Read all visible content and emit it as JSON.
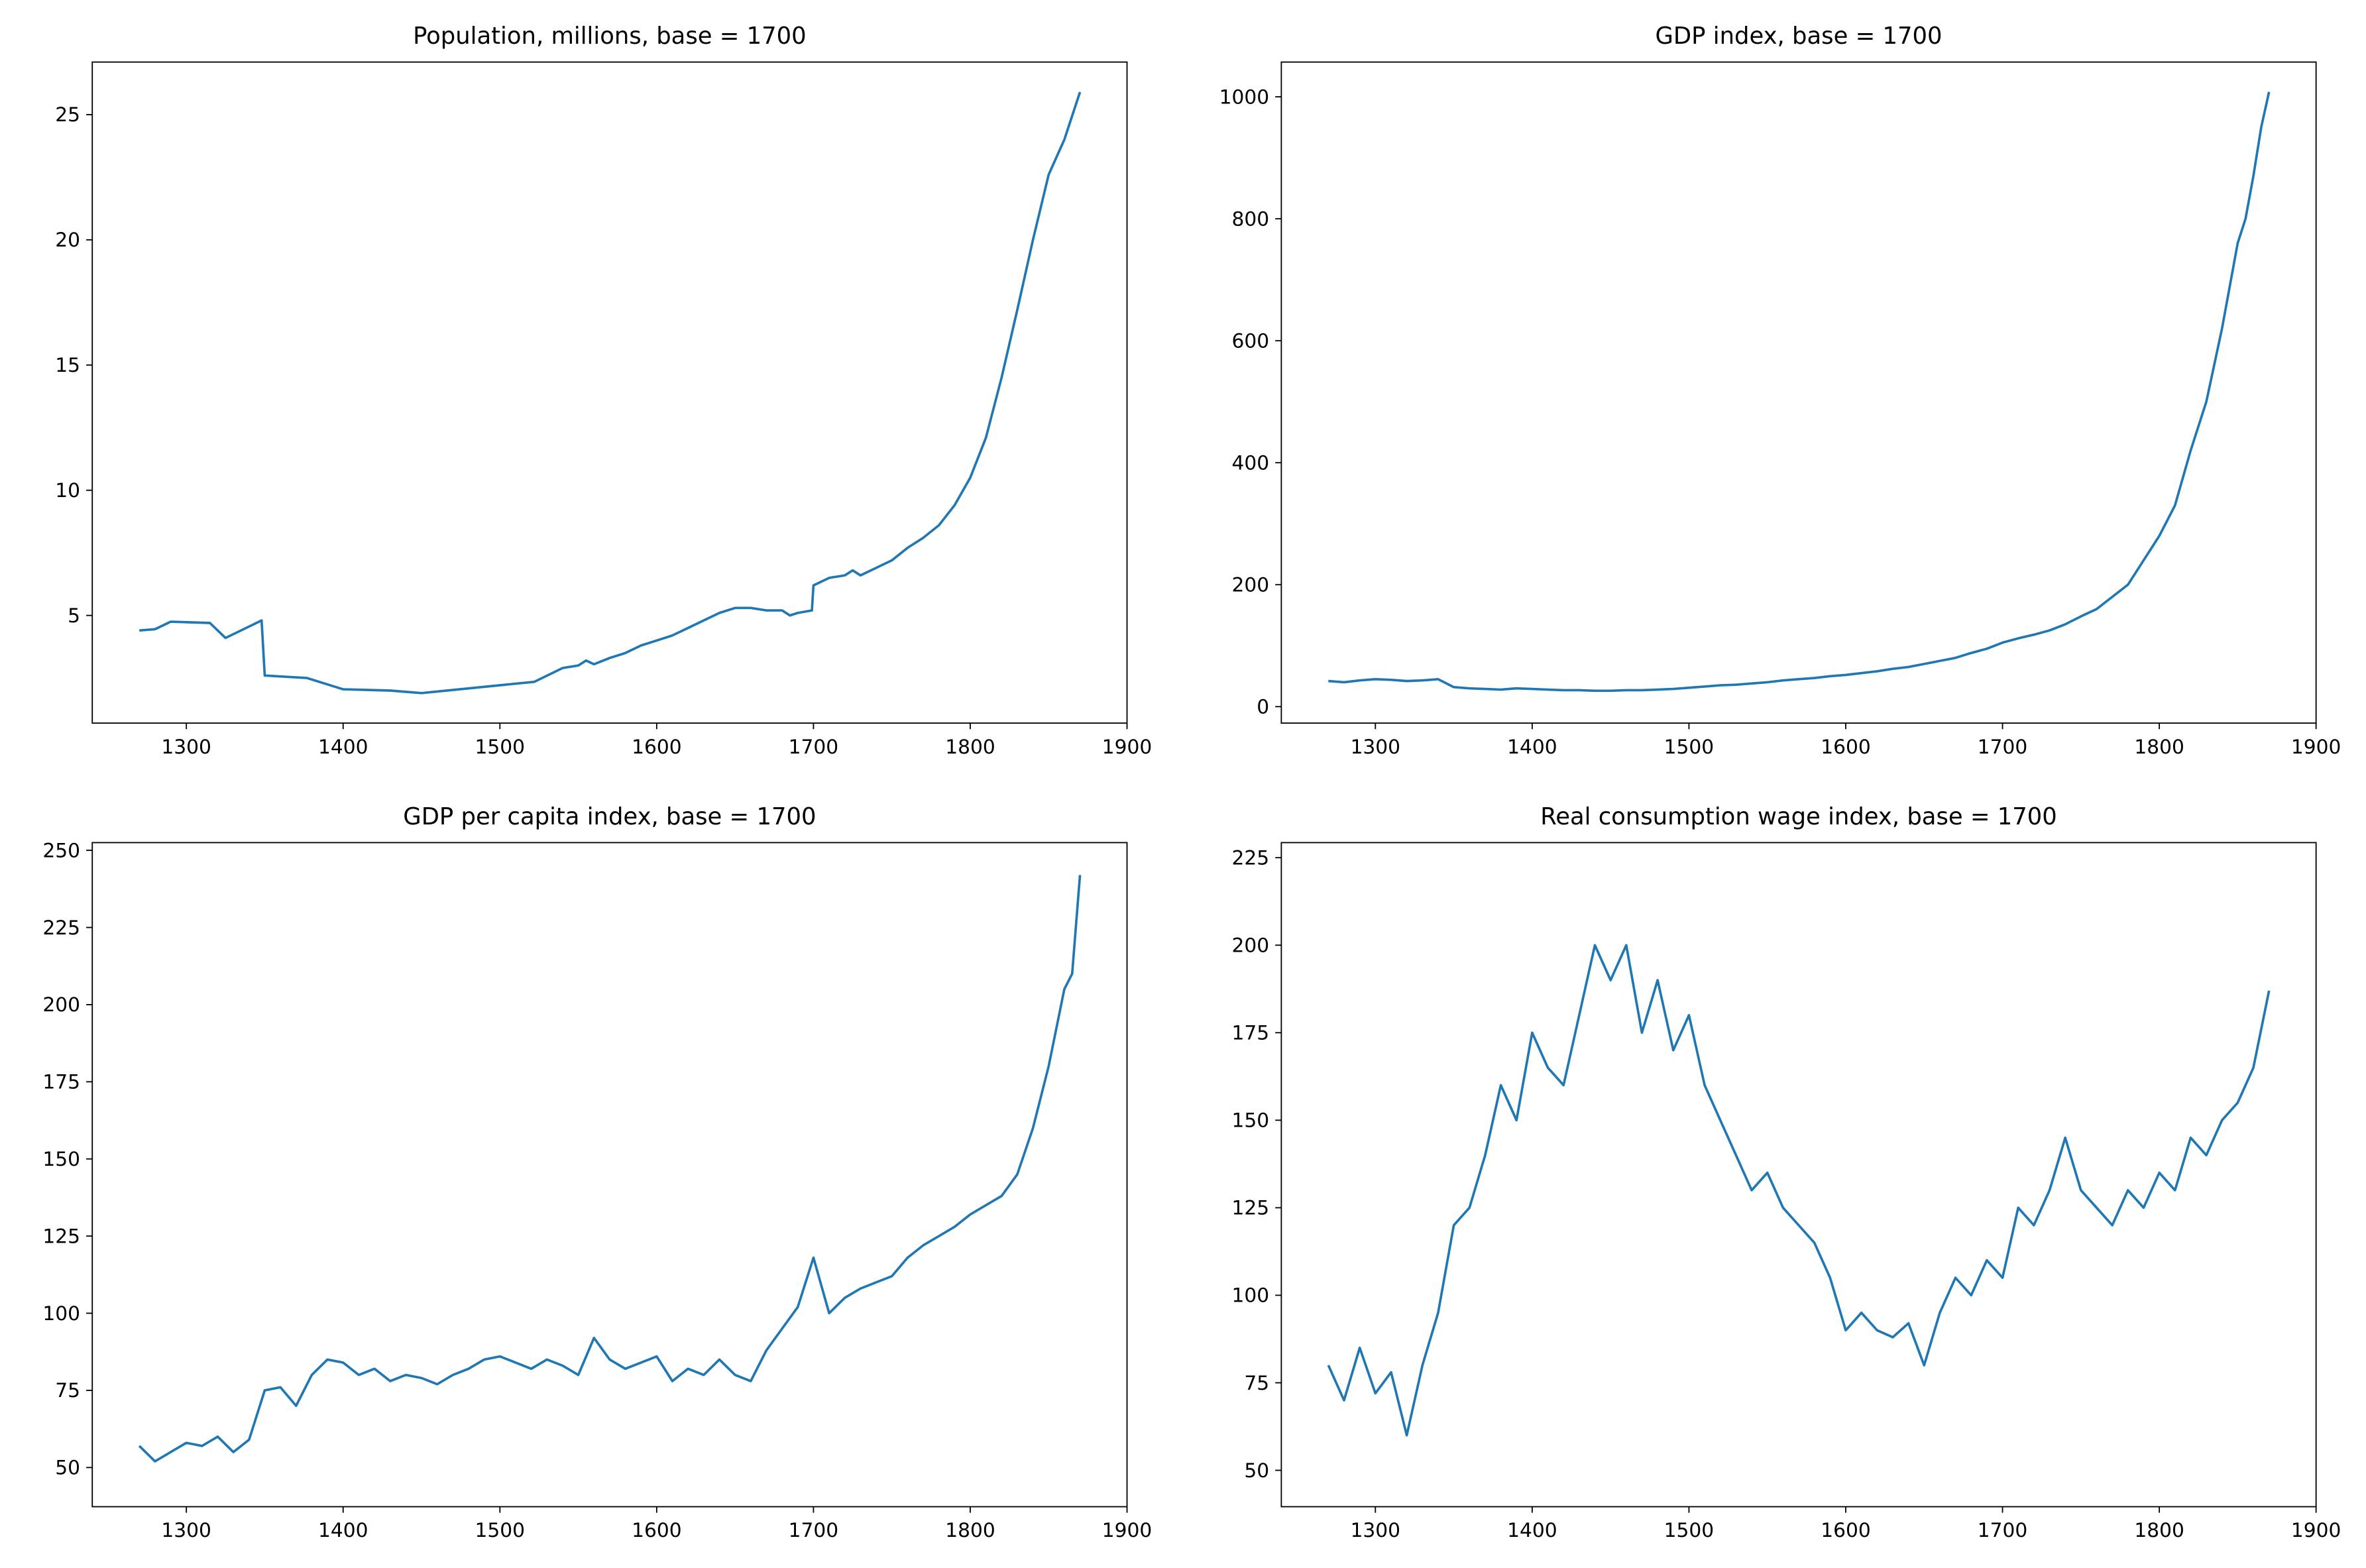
{
  "chart_data": [
    {
      "type": "line",
      "title": "Population, millions, base = 1700",
      "color": "#1f77b4",
      "xlim": [
        1240,
        1900
      ],
      "xticks": [
        1300,
        1400,
        1500,
        1600,
        1700,
        1800,
        1900
      ],
      "ylim": [
        0.7,
        27.1
      ],
      "yticks": [
        5,
        10,
        15,
        20,
        25
      ],
      "x": [
        1270,
        1280,
        1290,
        1315,
        1325,
        1348,
        1350,
        1377,
        1400,
        1430,
        1450,
        1522,
        1540,
        1550,
        1555,
        1560,
        1570,
        1580,
        1590,
        1600,
        1610,
        1620,
        1630,
        1640,
        1650,
        1660,
        1670,
        1680,
        1685,
        1690,
        1699,
        1700,
        1710,
        1720,
        1725,
        1730,
        1740,
        1750,
        1760,
        1770,
        1780,
        1790,
        1800,
        1810,
        1820,
        1830,
        1840,
        1850,
        1860,
        1870
      ],
      "values": [
        4.4,
        4.45,
        4.75,
        4.7,
        4.1,
        4.8,
        2.6,
        2.5,
        2.05,
        2.0,
        1.9,
        2.35,
        2.9,
        3.0,
        3.2,
        3.05,
        3.3,
        3.5,
        3.8,
        4.0,
        4.2,
        4.5,
        4.8,
        5.1,
        5.3,
        5.3,
        5.2,
        5.2,
        5.0,
        5.1,
        5.2,
        6.2,
        6.5,
        6.6,
        6.8,
        6.6,
        6.9,
        7.2,
        7.7,
        8.1,
        8.6,
        9.4,
        10.5,
        12.1,
        14.5,
        17.2,
        20.0,
        22.6,
        24.0,
        25.9
      ]
    },
    {
      "type": "line",
      "title": "GDP index, base = 1700",
      "color": "#1f77b4",
      "xlim": [
        1240,
        1900
      ],
      "xticks": [
        1300,
        1400,
        1500,
        1600,
        1700,
        1800,
        1900
      ],
      "ylim": [
        -27,
        1057
      ],
      "yticks": [
        0,
        200,
        400,
        600,
        800,
        1000
      ],
      "x": [
        1270,
        1280,
        1290,
        1300,
        1310,
        1320,
        1330,
        1340,
        1350,
        1360,
        1370,
        1380,
        1390,
        1400,
        1410,
        1420,
        1430,
        1440,
        1450,
        1460,
        1470,
        1480,
        1490,
        1500,
        1510,
        1520,
        1530,
        1540,
        1550,
        1560,
        1570,
        1580,
        1590,
        1600,
        1610,
        1620,
        1630,
        1640,
        1650,
        1660,
        1670,
        1680,
        1690,
        1700,
        1710,
        1720,
        1730,
        1740,
        1750,
        1760,
        1770,
        1780,
        1790,
        1800,
        1810,
        1820,
        1830,
        1840,
        1850,
        1855,
        1860,
        1865,
        1870
      ],
      "values": [
        42,
        40,
        43,
        45,
        44,
        42,
        43,
        45,
        32,
        30,
        29,
        28,
        30,
        29,
        28,
        27,
        27,
        26,
        26,
        27,
        27,
        28,
        29,
        31,
        33,
        35,
        36,
        38,
        40,
        43,
        45,
        47,
        50,
        52,
        55,
        58,
        62,
        65,
        70,
        75,
        80,
        88,
        95,
        105,
        112,
        118,
        125,
        135,
        148,
        160,
        180,
        200,
        240,
        280,
        330,
        420,
        500,
        620,
        760,
        800,
        870,
        950,
        1008
      ]
    },
    {
      "type": "line",
      "title": "GDP per capita index, base = 1700",
      "color": "#1f77b4",
      "xlim": [
        1240,
        1900
      ],
      "xticks": [
        1300,
        1400,
        1500,
        1600,
        1700,
        1800,
        1900
      ],
      "ylim": [
        37.3,
        252.5
      ],
      "yticks": [
        50,
        75,
        100,
        125,
        150,
        175,
        200,
        225,
        250
      ],
      "x": [
        1270,
        1280,
        1290,
        1300,
        1310,
        1320,
        1330,
        1340,
        1350,
        1360,
        1370,
        1380,
        1390,
        1400,
        1410,
        1420,
        1430,
        1440,
        1450,
        1460,
        1470,
        1480,
        1490,
        1500,
        1510,
        1520,
        1530,
        1540,
        1550,
        1560,
        1570,
        1580,
        1590,
        1600,
        1610,
        1620,
        1630,
        1640,
        1650,
        1660,
        1670,
        1680,
        1690,
        1700,
        1710,
        1720,
        1730,
        1740,
        1750,
        1760,
        1770,
        1780,
        1790,
        1800,
        1810,
        1820,
        1830,
        1840,
        1850,
        1860,
        1865,
        1870
      ],
      "values": [
        57,
        52,
        55,
        58,
        57,
        60,
        55,
        59,
        75,
        76,
        70,
        80,
        85,
        84,
        80,
        82,
        78,
        80,
        79,
        77,
        80,
        82,
        85,
        86,
        84,
        82,
        85,
        83,
        80,
        92,
        85,
        82,
        84,
        86,
        78,
        82,
        80,
        85,
        80,
        78,
        88,
        95,
        102,
        118,
        100,
        105,
        108,
        110,
        112,
        118,
        122,
        125,
        128,
        132,
        135,
        138,
        145,
        160,
        180,
        205,
        210,
        242
      ]
    },
    {
      "type": "line",
      "title": "Real consumption wage index, base = 1700",
      "color": "#1f77b4",
      "xlim": [
        1240,
        1900
      ],
      "xticks": [
        1300,
        1400,
        1500,
        1600,
        1700,
        1800,
        1900
      ],
      "ylim": [
        39.6,
        229.3
      ],
      "yticks": [
        50,
        75,
        100,
        125,
        150,
        175,
        200,
        225
      ],
      "x": [
        1270,
        1280,
        1290,
        1300,
        1310,
        1320,
        1330,
        1340,
        1350,
        1360,
        1370,
        1380,
        1390,
        1400,
        1410,
        1420,
        1430,
        1440,
        1450,
        1460,
        1470,
        1480,
        1490,
        1500,
        1510,
        1520,
        1530,
        1540,
        1550,
        1560,
        1570,
        1580,
        1590,
        1600,
        1610,
        1620,
        1630,
        1640,
        1650,
        1660,
        1670,
        1680,
        1690,
        1700,
        1710,
        1720,
        1730,
        1740,
        1750,
        1760,
        1770,
        1780,
        1790,
        1800,
        1810,
        1820,
        1830,
        1840,
        1850,
        1860,
        1870
      ],
      "values": [
        80,
        70,
        85,
        72,
        78,
        60,
        80,
        95,
        120,
        125,
        140,
        160,
        150,
        175,
        165,
        160,
        180,
        200,
        190,
        200,
        175,
        190,
        170,
        180,
        160,
        150,
        140,
        130,
        135,
        125,
        120,
        115,
        105,
        90,
        95,
        90,
        88,
        92,
        80,
        95,
        105,
        100,
        110,
        105,
        125,
        120,
        130,
        145,
        130,
        125,
        120,
        130,
        125,
        135,
        130,
        145,
        140,
        150,
        155,
        165,
        187
      ]
    }
  ]
}
